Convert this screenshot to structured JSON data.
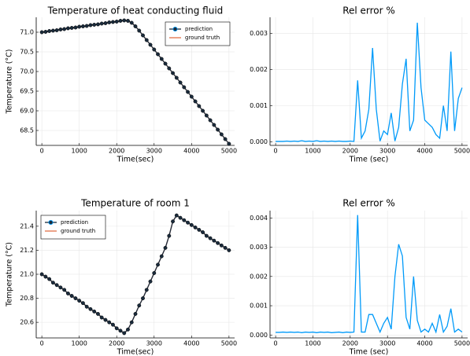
{
  "chart_data": [
    {
      "type": "line",
      "title": "Temperature of heat conducting fluid",
      "xlabel": "Time(sec)",
      "ylabel": "Temperature (°C)",
      "x": [
        0,
        100,
        200,
        300,
        400,
        500,
        600,
        700,
        800,
        900,
        1000,
        1100,
        1200,
        1300,
        1400,
        1500,
        1600,
        1700,
        1800,
        1900,
        2000,
        2100,
        2200,
        2300,
        2400,
        2500,
        2600,
        2700,
        2800,
        2900,
        3000,
        3100,
        3200,
        3300,
        3400,
        3500,
        3600,
        3700,
        3800,
        3900,
        4000,
        4100,
        4200,
        4300,
        4400,
        4500,
        4600,
        4700,
        4800,
        4900,
        5000
      ],
      "series": [
        {
          "name": "prediction",
          "color": "#1a2b3c",
          "marker": "circle",
          "values": [
            71.0,
            71.01,
            71.03,
            71.04,
            71.05,
            71.07,
            71.08,
            71.1,
            71.11,
            71.12,
            71.14,
            71.15,
            71.16,
            71.18,
            71.19,
            71.2,
            71.22,
            71.23,
            71.25,
            71.26,
            71.27,
            71.29,
            71.3,
            71.29,
            71.24,
            71.15,
            71.04,
            70.92,
            70.8,
            70.68,
            70.56,
            70.44,
            70.32,
            70.2,
            70.08,
            69.96,
            69.84,
            69.72,
            69.6,
            69.48,
            69.36,
            69.24,
            69.12,
            69.0,
            68.88,
            68.76,
            68.64,
            68.52,
            68.4,
            68.28,
            68.16
          ]
        },
        {
          "name": "ground truth",
          "color": "#e26f46",
          "values": [
            71.0,
            71.01,
            71.03,
            71.04,
            71.05,
            71.07,
            71.08,
            71.1,
            71.11,
            71.12,
            71.14,
            71.15,
            71.16,
            71.18,
            71.19,
            71.2,
            71.22,
            71.23,
            71.25,
            71.26,
            71.27,
            71.29,
            71.3,
            71.29,
            71.24,
            71.15,
            71.04,
            70.92,
            70.8,
            70.68,
            70.56,
            70.44,
            70.32,
            70.2,
            70.08,
            69.96,
            69.84,
            69.72,
            69.6,
            69.48,
            69.36,
            69.24,
            69.12,
            69.0,
            68.88,
            68.76,
            68.64,
            68.52,
            68.4,
            68.28,
            68.16
          ]
        }
      ],
      "xlim": [
        -150,
        5150
      ],
      "ylim": [
        68.12,
        71.38
      ],
      "xticks": [
        0,
        1000,
        2000,
        3000,
        4000,
        5000
      ],
      "yticks": [
        68.5,
        {
          "value": 69.0,
          "label": "69.0"
        },
        69.5,
        {
          "value": 70.0,
          "label": "70.0"
        },
        70.5,
        {
          "value": 71.0,
          "label": "71.0"
        }
      ],
      "grid": true,
      "legend": "top-right"
    },
    {
      "type": "line",
      "title": "Rel error %",
      "xlabel": "Time (sec)",
      "color": "#009af9",
      "x": [
        0,
        100,
        200,
        300,
        400,
        500,
        600,
        700,
        800,
        900,
        1000,
        1100,
        1200,
        1300,
        1400,
        1500,
        1600,
        1700,
        1800,
        1900,
        2000,
        2100,
        2200,
        2300,
        2400,
        2500,
        2600,
        2700,
        2800,
        2900,
        3000,
        3100,
        3200,
        3300,
        3400,
        3500,
        3600,
        3700,
        3800,
        3900,
        4000,
        4100,
        4200,
        4300,
        4400,
        4500,
        4600,
        4700,
        4800,
        4900,
        5000
      ],
      "values": [
        1e-05,
        1e-05,
        1e-05,
        2e-05,
        1e-05,
        2e-05,
        1e-05,
        3e-05,
        1e-05,
        2e-05,
        1e-05,
        3e-05,
        1e-05,
        2e-05,
        1e-05,
        2e-05,
        1e-05,
        2e-05,
        1e-05,
        1e-05,
        2e-05,
        1e-05,
        0.0017,
        0.0001,
        0.0003,
        0.0009,
        0.0026,
        0.0009,
        2e-05,
        0.0003,
        0.0002,
        0.0008,
        2e-05,
        0.0004,
        0.0016,
        0.0023,
        0.0003,
        0.0006,
        0.0033,
        0.0015,
        0.0006,
        0.0005,
        0.0004,
        0.0002,
        0.0001,
        0.001,
        0.0003,
        0.0025,
        0.0003,
        0.0012,
        0.0015
      ],
      "xlim": [
        -150,
        5150
      ],
      "ylim": [
        -0.0001,
        0.00345
      ],
      "xticks": [
        0,
        1000,
        2000,
        3000,
        4000,
        5000
      ],
      "yticks": [
        {
          "value": 0,
          "label": "0.000"
        },
        0.001,
        0.002,
        0.003
      ],
      "grid": true
    },
    {
      "type": "line",
      "title": "Temperature of room 1",
      "xlabel": "Time(sec)",
      "ylabel": "Temperature (°C)",
      "x": [
        0,
        100,
        200,
        300,
        400,
        500,
        600,
        700,
        800,
        900,
        1000,
        1100,
        1200,
        1300,
        1400,
        1500,
        1600,
        1700,
        1800,
        1900,
        2000,
        2100,
        2200,
        2300,
        2400,
        2500,
        2600,
        2700,
        2800,
        2900,
        3000,
        3100,
        3200,
        3300,
        3400,
        3500,
        3600,
        3700,
        3800,
        3900,
        4000,
        4100,
        4200,
        4300,
        4400,
        4500,
        4600,
        4700,
        4800,
        4900,
        5000
      ],
      "series": [
        {
          "name": "prediction",
          "color": "#1a2b3c",
          "marker": "circle",
          "values": [
            21.0,
            20.98,
            20.96,
            20.93,
            20.91,
            20.89,
            20.87,
            20.84,
            20.82,
            20.8,
            20.78,
            20.76,
            20.73,
            20.71,
            20.69,
            20.67,
            20.64,
            20.62,
            20.6,
            20.58,
            20.55,
            20.53,
            20.51,
            20.54,
            20.6,
            20.67,
            20.74,
            20.8,
            20.87,
            20.94,
            21.01,
            21.08,
            21.15,
            21.22,
            21.32,
            21.44,
            21.49,
            21.47,
            21.45,
            21.43,
            21.41,
            21.39,
            21.37,
            21.35,
            21.32,
            21.3,
            21.28,
            21.26,
            21.24,
            21.22,
            21.2
          ]
        },
        {
          "name": "ground truth",
          "color": "#e26f46",
          "values": [
            21.0,
            20.98,
            20.96,
            20.93,
            20.91,
            20.89,
            20.87,
            20.84,
            20.82,
            20.8,
            20.78,
            20.76,
            20.73,
            20.71,
            20.69,
            20.67,
            20.64,
            20.62,
            20.6,
            20.58,
            20.55,
            20.53,
            20.51,
            20.54,
            20.6,
            20.67,
            20.74,
            20.8,
            20.87,
            20.94,
            21.01,
            21.08,
            21.15,
            21.22,
            21.32,
            21.44,
            21.49,
            21.47,
            21.45,
            21.43,
            21.41,
            21.39,
            21.37,
            21.35,
            21.32,
            21.3,
            21.28,
            21.26,
            21.24,
            21.22,
            21.2
          ]
        }
      ],
      "xlim": [
        -150,
        5150
      ],
      "ylim": [
        20.47,
        21.53
      ],
      "xticks": [
        0,
        1000,
        2000,
        3000,
        4000,
        5000
      ],
      "yticks": [
        20.6,
        20.8,
        {
          "value": 21.0,
          "label": "21.0"
        },
        21.2,
        21.4
      ],
      "grid": true,
      "legend": "top-left"
    },
    {
      "type": "line",
      "title": "Rel error %",
      "xlabel": "Time (sec)",
      "color": "#009af9",
      "x": [
        0,
        100,
        200,
        300,
        400,
        500,
        600,
        700,
        800,
        900,
        1000,
        1100,
        1200,
        1300,
        1400,
        1500,
        1600,
        1700,
        1800,
        1900,
        2000,
        2100,
        2200,
        2300,
        2400,
        2500,
        2600,
        2700,
        2800,
        2900,
        3000,
        3100,
        3200,
        3300,
        3400,
        3500,
        3600,
        3700,
        3800,
        3900,
        4000,
        4100,
        4200,
        4300,
        4400,
        4500,
        4600,
        4700,
        4800,
        4900,
        5000
      ],
      "values": [
        9e-05,
        9e-05,
        0.0001,
        9e-05,
        0.0001,
        9e-05,
        0.0001,
        8e-05,
        0.0001,
        9e-05,
        0.0001,
        8e-05,
        0.0001,
        9e-05,
        0.0001,
        8e-05,
        9e-05,
        0.0001,
        8e-05,
        0.0001,
        9e-05,
        0.0001,
        0.0041,
        0.0001,
        0.0001,
        0.0007,
        0.0007,
        0.0004,
        0.0001,
        0.0004,
        0.0006,
        0.0002,
        0.002,
        0.0031,
        0.0027,
        0.0006,
        0.0002,
        0.002,
        0.0005,
        0.0001,
        0.0002,
        0.0001,
        0.0004,
        0.0001,
        0.0007,
        0.0001,
        0.0003,
        0.0009,
        0.0001,
        0.0002,
        0.0001
      ],
      "xlim": [
        -150,
        5150
      ],
      "ylim": [
        -0.0001,
        0.00425
      ],
      "xticks": [
        0,
        1000,
        2000,
        3000,
        4000,
        5000
      ],
      "yticks": [
        {
          "value": 0,
          "label": "0.000"
        },
        0.001,
        0.002,
        0.003,
        0.004
      ],
      "grid": true
    }
  ]
}
